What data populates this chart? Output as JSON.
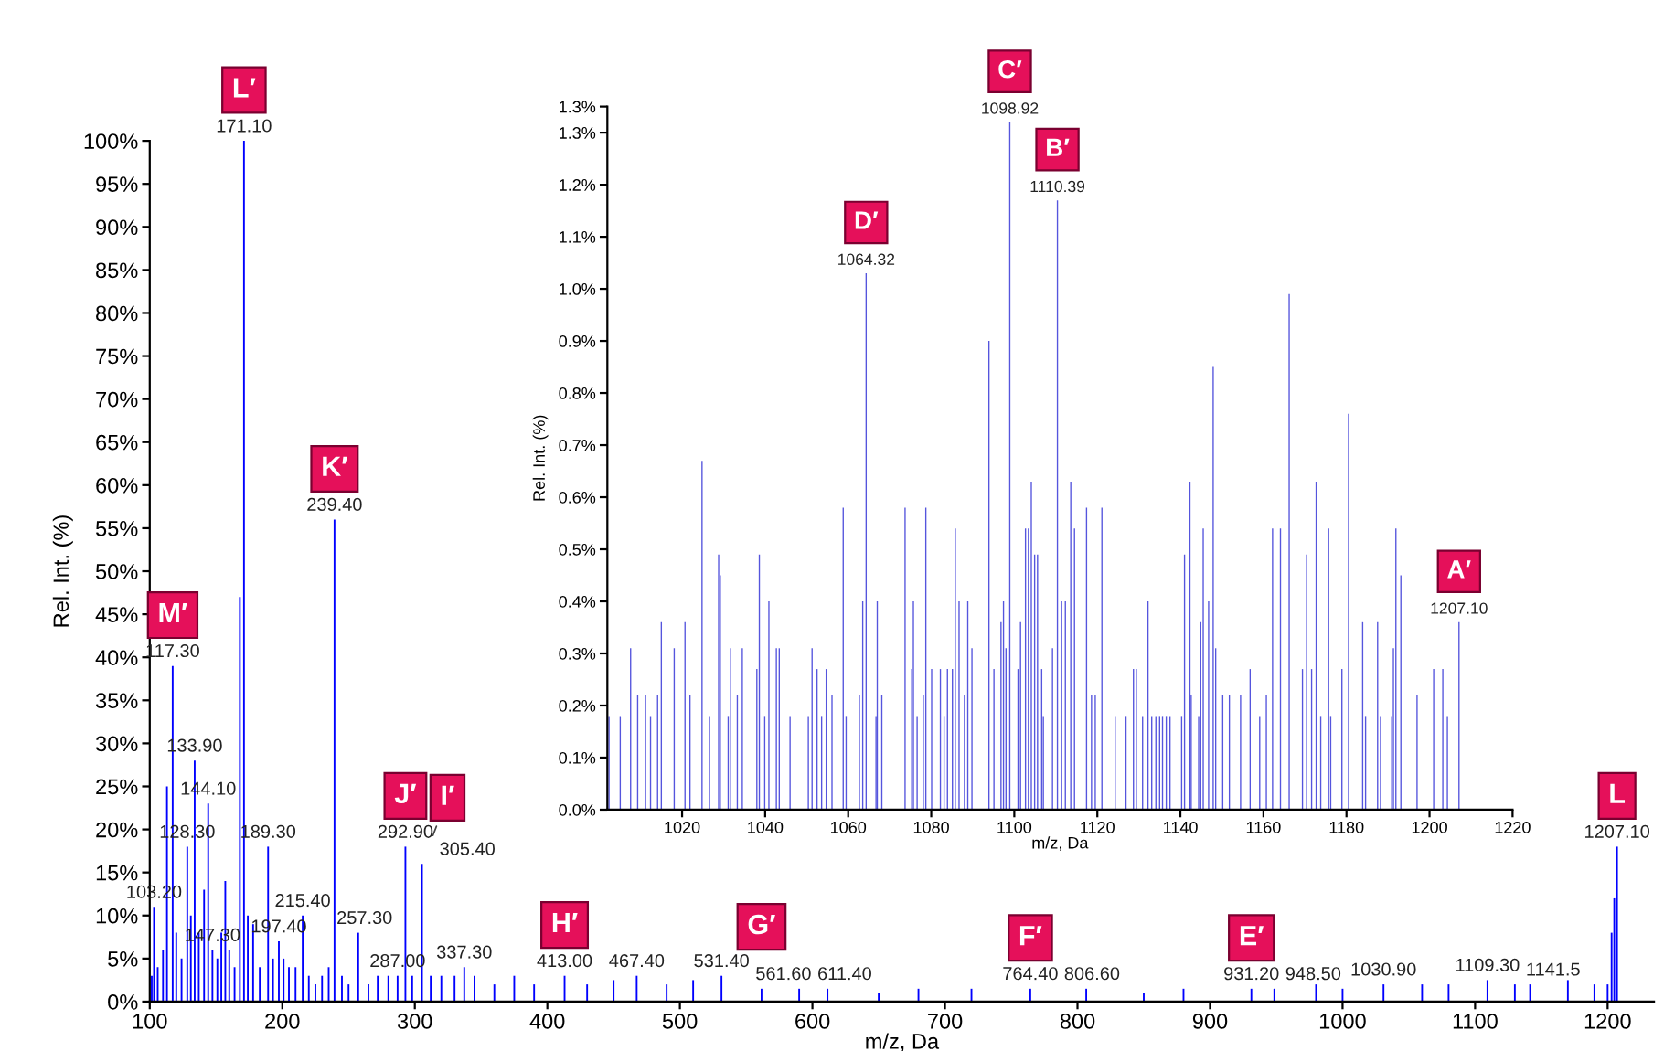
{
  "chart_data": [
    {
      "type": "bar",
      "xlabel": "m/z, Da",
      "ylabel": "Rel. Int. (%)",
      "color": "#0000ff",
      "xlim": [
        100,
        1235
      ],
      "ylim": [
        0,
        100
      ],
      "xticks": [
        100,
        200,
        300,
        400,
        500,
        600,
        700,
        800,
        900,
        1000,
        1100,
        1200
      ],
      "yticks": [
        {
          "value": 0,
          "label": "0%"
        },
        {
          "value": 5,
          "label": "5%"
        },
        {
          "value": 10,
          "label": "10%"
        },
        {
          "value": 15,
          "label": "15%"
        },
        {
          "value": 20,
          "label": "20%"
        },
        {
          "value": 25,
          "label": "25%"
        },
        {
          "value": 30,
          "label": "30%"
        },
        {
          "value": 35,
          "label": "35%"
        },
        {
          "value": 40,
          "label": "40%"
        },
        {
          "value": 45,
          "label": "45%"
        },
        {
          "value": 50,
          "label": "50%"
        },
        {
          "value": 55,
          "label": "55%"
        },
        {
          "value": 60,
          "label": "60%"
        },
        {
          "value": 65,
          "label": "65%"
        },
        {
          "value": 70,
          "label": "70%"
        },
        {
          "value": 75,
          "label": "75%"
        },
        {
          "value": 80,
          "label": "80%"
        },
        {
          "value": 85,
          "label": "85%"
        },
        {
          "value": 90,
          "label": "90%"
        },
        {
          "value": 95,
          "label": "95%"
        },
        {
          "value": 100,
          "label": "100%"
        }
      ],
      "x": [
        101.5,
        103.2,
        106,
        110,
        113,
        117.3,
        120,
        124,
        128.3,
        131,
        133.9,
        137,
        141,
        144.1,
        147.3,
        151,
        154,
        157,
        160,
        164,
        168,
        171.1,
        174,
        178,
        183,
        189.3,
        193,
        197.4,
        201,
        205,
        210,
        215.4,
        220,
        225,
        230,
        235,
        239.4,
        245,
        250,
        257.3,
        265,
        272,
        280,
        287,
        292.9,
        298,
        305.4,
        312,
        320,
        330,
        337.3,
        345,
        360,
        375,
        390,
        413,
        430,
        450,
        467.4,
        490,
        510,
        531.4,
        561.6,
        590,
        611.4,
        650,
        680,
        720,
        764.4,
        806.6,
        850,
        880,
        931.2,
        948.5,
        980,
        1000,
        1030.9,
        1060,
        1080,
        1109.3,
        1130,
        1141.5,
        1170,
        1190,
        1200,
        1203,
        1205,
        1207.1
      ],
      "values": [
        3,
        11,
        4,
        6,
        25,
        39,
        8,
        5,
        18,
        10,
        28,
        8,
        13,
        23,
        6,
        5,
        8,
        14,
        6,
        4,
        47,
        100,
        10,
        9,
        4,
        18,
        5,
        7,
        5,
        4,
        4,
        10,
        3,
        2,
        3,
        4,
        56,
        3,
        2,
        8,
        2,
        3,
        3,
        3,
        18,
        3,
        16,
        3,
        3,
        3,
        4,
        3,
        2,
        3,
        2,
        3,
        2,
        2.5,
        3,
        2,
        2.5,
        3,
        1.5,
        1.5,
        1.5,
        1,
        1.5,
        1.5,
        1.5,
        1.5,
        1,
        1.5,
        1.5,
        1.5,
        2,
        1.5,
        2,
        2,
        2,
        2.5,
        2,
        2,
        2.5,
        2,
        2,
        8,
        12,
        18
      ],
      "annotations": [
        {
          "text": "103.20",
          "x": 103.2,
          "y": 11
        },
        {
          "text": "117.30",
          "x": 117.3,
          "y": 39
        },
        {
          "text": "128.30",
          "x": 128.3,
          "y": 18
        },
        {
          "text": "133.90",
          "x": 133.9,
          "y": 28
        },
        {
          "text": "144.10",
          "x": 144.1,
          "y": 23
        },
        {
          "text": "147.30",
          "x": 147.3,
          "y": 6
        },
        {
          "text": "171.10",
          "x": 171.1,
          "y": 100
        },
        {
          "text": "189.30",
          "x": 189.3,
          "y": 18
        },
        {
          "text": "197.40",
          "x": 197.4,
          "y": 7
        },
        {
          "text": "215.40",
          "x": 215.4,
          "y": 10
        },
        {
          "text": "239.40",
          "x": 239.4,
          "y": 56
        },
        {
          "text": "257.30",
          "x": 257.3,
          "y": 8
        },
        {
          "text": "287.00",
          "x": 287,
          "y": 3
        },
        {
          "text": "292.90",
          "x": 292.9,
          "y": 18
        },
        {
          "text": "305.40",
          "x": 305.4,
          "y": 16
        },
        {
          "text": "337.30",
          "x": 337.3,
          "y": 4
        },
        {
          "text": "413.00",
          "x": 413,
          "y": 3
        },
        {
          "text": "467.40",
          "x": 467.4,
          "y": 3
        },
        {
          "text": "531.40",
          "x": 531.4,
          "y": 3
        },
        {
          "text": "561.60",
          "x": 561.6,
          "y": 1.5
        },
        {
          "text": "611.40",
          "x": 611.4,
          "y": 1.5
        },
        {
          "text": "764.40",
          "x": 764.4,
          "y": 1.5
        },
        {
          "text": "806.60",
          "x": 806.6,
          "y": 1.5
        },
        {
          "text": "931.20",
          "x": 931.2,
          "y": 1.5
        },
        {
          "text": "948.50",
          "x": 948.5,
          "y": 1.5
        },
        {
          "text": "1030.90",
          "x": 1030.9,
          "y": 2
        },
        {
          "text": "1109.30",
          "x": 1109.3,
          "y": 2.5
        },
        {
          "text": "1141.5",
          "x": 1141.5,
          "y": 2
        },
        {
          "text": "1207.10",
          "x": 1207.1,
          "y": 18
        },
        {
          "text": "L′",
          "x": 171.1,
          "y": 100
        },
        {
          "text": "K′",
          "x": 239.4,
          "y": 56
        },
        {
          "text": "M′",
          "x": 117.3,
          "y": 39
        },
        {
          "text": "J′",
          "x": 292.9,
          "y": 18
        },
        {
          "text": "I′",
          "x": 305.4,
          "y": 16
        },
        {
          "text": "H′",
          "x": 413,
          "y": 3
        },
        {
          "text": "G′",
          "x": 561.6,
          "y": 1.5
        },
        {
          "text": "F′",
          "x": 764.4,
          "y": 1.5
        },
        {
          "text": "E′",
          "x": 931.2,
          "y": 1.5
        },
        {
          "text": "L",
          "x": 1207.1,
          "y": 18
        }
      ]
    },
    {
      "type": "bar",
      "xlabel": "m/z, Da",
      "ylabel": "Rel. Int. (%)",
      "color": "#5555dd",
      "xlim": [
        1002,
        1220
      ],
      "ylim": [
        0,
        1.35
      ],
      "xticks": [
        1020,
        1040,
        1060,
        1080,
        1100,
        1120,
        1140,
        1160,
        1180,
        1200,
        1220
      ],
      "yticks": [
        {
          "value": 0,
          "label": "0.0%"
        },
        {
          "value": 0.1,
          "label": "0.1%"
        },
        {
          "value": 0.2,
          "label": "0.2%"
        },
        {
          "value": 0.3,
          "label": "0.3%"
        },
        {
          "value": 0.4,
          "label": "0.4%"
        },
        {
          "value": 0.5,
          "label": "0.5%"
        },
        {
          "value": 0.6,
          "label": "0.6%"
        },
        {
          "value": 0.7,
          "label": "0.7%"
        },
        {
          "value": 0.8,
          "label": "0.8%"
        },
        {
          "value": 0.9,
          "label": "0.9%"
        },
        {
          "value": 1.0,
          "label": "1.0%"
        },
        {
          "value": 1.1,
          "label": "1.1%"
        },
        {
          "value": 1.2,
          "label": "1.2%"
        },
        {
          "value": 1.3,
          "label": "1.3%"
        },
        {
          "value": 1.35,
          "label": "1.3%"
        }
      ],
      "x": [
        1002.4,
        1005.1,
        1007.6,
        1009.3,
        1011.2,
        1012.4,
        1014.1,
        1015.0,
        1018.1,
        1020.7,
        1021.9,
        1024.8,
        1026.6,
        1028.8,
        1029.2,
        1031.1,
        1031.7,
        1033.3,
        1034.5,
        1038.0,
        1038.6,
        1039.9,
        1040.9,
        1042.7,
        1043.4,
        1046.0,
        1050.4,
        1051.3,
        1052.5,
        1053.6,
        1054.7,
        1056.1,
        1058.8,
        1059.5,
        1062.7,
        1063.5,
        1064.32,
        1066.7,
        1067.0,
        1068.1,
        1073.7,
        1075.3,
        1075.7,
        1076.6,
        1078.1,
        1078.7,
        1080.1,
        1082.2,
        1083.1,
        1083.9,
        1085.1,
        1085.8,
        1086.7,
        1088.0,
        1088.8,
        1089.8,
        1093.9,
        1095.1,
        1096.8,
        1097.4,
        1098.0,
        1098.92,
        1100.9,
        1101.5,
        1102.7,
        1103.4,
        1104.1,
        1104.9,
        1105.6,
        1106.6,
        1107.0,
        1109.2,
        1110.39,
        1111.4,
        1112.3,
        1113.6,
        1114.5,
        1117.4,
        1118.6,
        1119.5,
        1121.1,
        1124.3,
        1126.9,
        1128.7,
        1129.4,
        1130.9,
        1132.2,
        1133.1,
        1134.1,
        1135.0,
        1135.7,
        1136.6,
        1137.5,
        1140.3,
        1141.0,
        1142.3,
        1142.6,
        1144.4,
        1144.9,
        1145.5,
        1146.8,
        1147.9,
        1148.5,
        1150.2,
        1151.8,
        1154.5,
        1156.8,
        1159.1,
        1160.7,
        1162.2,
        1164.1,
        1166.2,
        1169.4,
        1170.4,
        1171.6,
        1172.7,
        1173.8,
        1175.7,
        1176.2,
        1178.9,
        1180.5,
        1183.9,
        1184.6,
        1187.5,
        1188.2,
        1190.9,
        1191.3,
        1191.9,
        1193.1,
        1197.0,
        1201.0,
        1203.2,
        1204.3,
        1207.1
      ],
      "values": [
        0.18,
        0.18,
        0.31,
        0.22,
        0.22,
        0.18,
        0.22,
        0.36,
        0.31,
        0.36,
        0.22,
        0.67,
        0.18,
        0.49,
        0.45,
        0.18,
        0.31,
        0.22,
        0.31,
        0.27,
        0.49,
        0.18,
        0.4,
        0.31,
        0.31,
        0.18,
        0.18,
        0.31,
        0.27,
        0.18,
        0.27,
        0.22,
        0.58,
        0.18,
        0.22,
        0.4,
        1.03,
        0.18,
        0.4,
        0.22,
        0.58,
        0.27,
        0.4,
        0.18,
        0.22,
        0.58,
        0.27,
        0.27,
        0.18,
        0.27,
        0.27,
        0.54,
        0.4,
        0.22,
        0.4,
        0.31,
        0.9,
        0.27,
        0.36,
        0.4,
        0.31,
        1.32,
        0.27,
        0.36,
        0.54,
        0.54,
        0.63,
        0.49,
        0.49,
        0.27,
        0.18,
        0.31,
        1.17,
        0.4,
        0.4,
        0.63,
        0.54,
        0.58,
        0.22,
        0.22,
        0.58,
        0.18,
        0.18,
        0.27,
        0.27,
        0.18,
        0.4,
        0.18,
        0.18,
        0.18,
        0.18,
        0.18,
        0.18,
        0.18,
        0.49,
        0.63,
        0.22,
        0.18,
        0.36,
        0.54,
        0.4,
        0.85,
        0.31,
        0.22,
        0.22,
        0.22,
        0.27,
        0.18,
        0.22,
        0.54,
        0.54,
        0.99,
        0.27,
        0.49,
        0.27,
        0.63,
        0.18,
        0.54,
        0.18,
        0.27,
        0.76,
        0.36,
        0.18,
        0.36,
        0.18,
        0.18,
        0.31,
        0.54,
        0.45,
        0.22,
        0.27,
        0.27,
        0.18,
        0.36
      ],
      "annotations": [
        {
          "text": "1064.32",
          "x": 1064.32,
          "y": 1.03
        },
        {
          "text": "1098.92",
          "x": 1098.92,
          "y": 1.32
        },
        {
          "text": "1110.39",
          "x": 1110.39,
          "y": 1.17
        },
        {
          "text": "1207.10",
          "x": 1207.1,
          "y": 0.36
        },
        {
          "text": "D′",
          "x": 1064.32,
          "y": 1.03
        },
        {
          "text": "C′",
          "x": 1098.92,
          "y": 1.32
        },
        {
          "text": "B′",
          "x": 1110.39,
          "y": 1.17
        },
        {
          "text": "A′",
          "x": 1207.1,
          "y": 0.36
        }
      ]
    }
  ]
}
